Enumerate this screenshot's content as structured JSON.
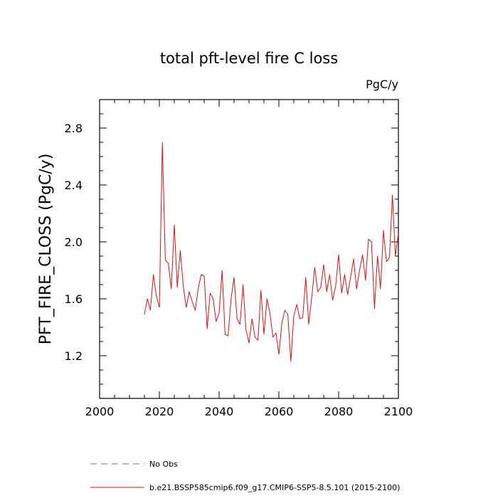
{
  "chart_data": {
    "type": "line",
    "title": "total pft-level fire C loss",
    "units_label": "PgC/y",
    "ylabel": "PFT_FIRE_CLOSS  (PgC/y)",
    "xlabel": "",
    "xlim": [
      2000,
      2100
    ],
    "ylim": [
      0.9,
      3.0
    ],
    "xticks": [
      2000,
      2020,
      2040,
      2060,
      2080,
      2100
    ],
    "yticks": [
      1.2,
      1.6,
      2.0,
      2.4,
      2.8
    ],
    "ytick_labels": [
      "1.2",
      "1.6",
      "2.0",
      "2.4",
      "2.8"
    ],
    "grid": false,
    "legend_position": "bottom",
    "legend": [
      {
        "label": "No Obs",
        "color": "#6666ee",
        "style": "dashed"
      },
      {
        "label": "b.e21.BSSP585cmip6.f09_g17.CMIP6-SSP5-8.5.101 (2015-2100)",
        "color": "#e01010",
        "style": "solid"
      }
    ],
    "series": [
      {
        "name": "b.e21.BSSP585cmip6.f09_g17.CMIP6-SSP5-8.5.101 (2015-2100)",
        "color": "#e01010",
        "x": [
          2015,
          2016,
          2017,
          2018,
          2019,
          2020,
          2021,
          2022,
          2023,
          2024,
          2025,
          2026,
          2027,
          2028,
          2029,
          2030,
          2031,
          2032,
          2033,
          2034,
          2035,
          2036,
          2037,
          2038,
          2039,
          2040,
          2041,
          2042,
          2043,
          2044,
          2045,
          2046,
          2047,
          2048,
          2049,
          2050,
          2051,
          2052,
          2053,
          2054,
          2055,
          2056,
          2057,
          2058,
          2059,
          2060,
          2061,
          2062,
          2063,
          2064,
          2065,
          2066,
          2067,
          2068,
          2069,
          2070,
          2071,
          2072,
          2073,
          2074,
          2075,
          2076,
          2077,
          2078,
          2079,
          2080,
          2081,
          2082,
          2083,
          2084,
          2085,
          2086,
          2087,
          2088,
          2089,
          2090,
          2091,
          2092,
          2093,
          2094,
          2095,
          2096,
          2097,
          2098,
          2099,
          2100
        ],
        "values": [
          1.49,
          1.6,
          1.52,
          1.77,
          1.62,
          1.54,
          2.7,
          1.87,
          1.85,
          1.67,
          2.12,
          1.68,
          1.94,
          1.69,
          1.54,
          1.65,
          1.58,
          1.52,
          1.67,
          1.77,
          1.76,
          1.39,
          1.64,
          1.6,
          1.44,
          1.5,
          1.8,
          1.35,
          1.34,
          1.6,
          1.75,
          1.46,
          1.42,
          1.7,
          1.38,
          1.29,
          1.46,
          1.33,
          1.31,
          1.66,
          1.35,
          1.6,
          1.5,
          1.33,
          1.36,
          1.21,
          1.43,
          1.52,
          1.49,
          1.16,
          1.48,
          1.56,
          1.46,
          1.47,
          1.75,
          1.42,
          1.61,
          1.82,
          1.65,
          1.68,
          1.84,
          1.65,
          1.77,
          1.59,
          1.69,
          1.91,
          1.64,
          1.77,
          1.63,
          1.75,
          1.88,
          1.67,
          1.8,
          1.91,
          1.73,
          2.02,
          2.0,
          1.53,
          1.9,
          1.67,
          2.08,
          1.86,
          1.89,
          2.33,
          1.9,
          2.06
        ]
      }
    ]
  }
}
